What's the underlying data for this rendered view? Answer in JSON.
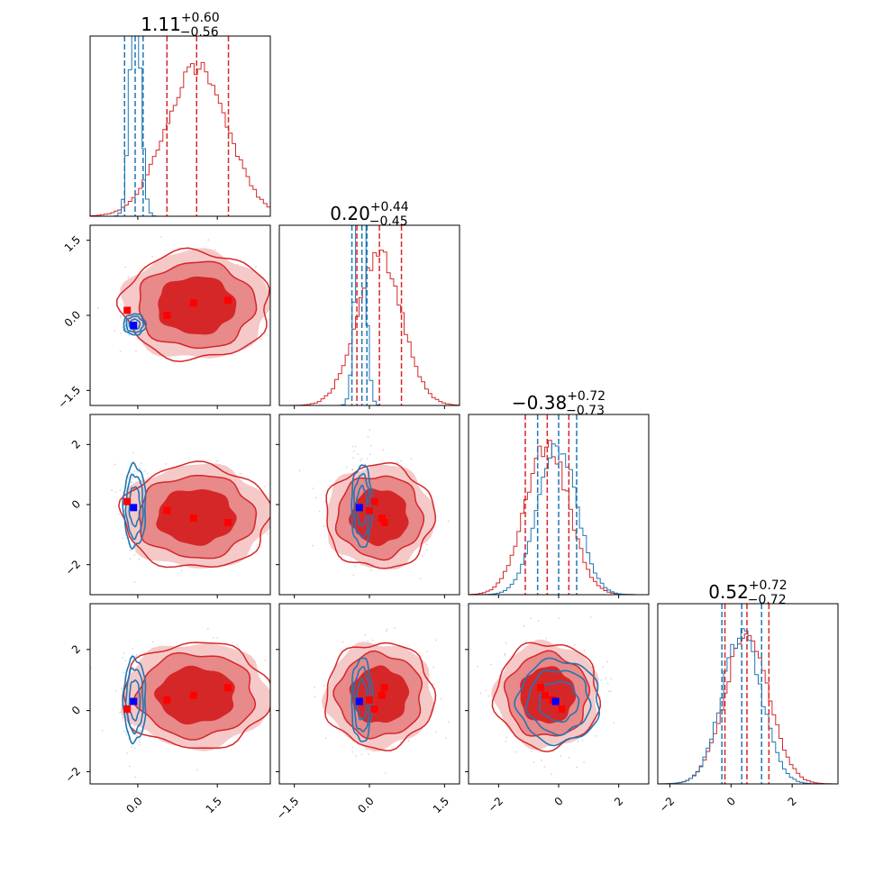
{
  "chart_data": {
    "type": "corner",
    "parameters": 4,
    "colors": {
      "red": "#d62728",
      "red_mid": "#e8898a",
      "red_light": "#f6c9c9",
      "blue": "#1f77b4",
      "blue_marker": "#0000ff",
      "red_marker": "#ff0000"
    },
    "series": [
      {
        "color": "red"
      },
      {
        "color": "blue"
      }
    ],
    "titles": [
      {
        "value": "1.11",
        "plus": "+0.60",
        "minus": "−0.56"
      },
      {
        "value": "0.20",
        "plus": "+0.44",
        "minus": "−0.45"
      },
      {
        "value": "−0.38",
        "plus": "+0.72",
        "minus": "−0.73"
      },
      {
        "value": "0.52",
        "plus": "+0.72",
        "minus": "−0.72"
      }
    ],
    "ranges": [
      [
        -0.9,
        2.5
      ],
      [
        -1.8,
        1.8
      ],
      [
        -3.0,
        3.0
      ],
      [
        -2.4,
        3.5
      ]
    ],
    "ticks": [
      {
        "values": [
          0.0,
          1.5
        ],
        "labels": [
          "0.0",
          "1.5"
        ]
      },
      {
        "values": [
          -1.5,
          0.0,
          1.5
        ],
        "labels": [
          "−1.5",
          "0.0",
          "1.5"
        ]
      },
      {
        "values": [
          -2,
          0,
          2
        ],
        "labels": [
          "−2",
          "0",
          "2"
        ]
      },
      {
        "values": [
          -2,
          0,
          2
        ],
        "labels": [
          "−2",
          "0",
          "2"
        ]
      }
    ],
    "quantiles": {
      "red": [
        [
          0.55,
          1.11,
          1.71
        ],
        [
          -0.25,
          0.2,
          0.64
        ],
        [
          -1.11,
          -0.38,
          0.34
        ],
        [
          -0.2,
          0.52,
          1.24
        ]
      ],
      "blue": [
        [
          -0.25,
          -0.05,
          0.1
        ],
        [
          -0.35,
          -0.15,
          -0.05
        ],
        [
          -0.7,
          0.0,
          0.6
        ],
        [
          -0.3,
          0.35,
          1.0
        ]
      ]
    },
    "markers": {
      "red": [
        [
          -0.2,
          0.1,
          0.1,
          0.05
        ],
        [
          0.55,
          0.0,
          -0.2,
          0.35
        ],
        [
          1.05,
          0.25,
          -0.45,
          0.5
        ],
        [
          1.7,
          0.3,
          -0.6,
          0.75
        ]
      ],
      "blue": [
        [
          -0.08,
          -0.2,
          -0.1,
          0.3
        ]
      ]
    },
    "contours": {
      "red": [
        {
          "center": [
            1.1,
            0.2
          ],
          "sd": [
            0.58,
            0.45
          ]
        },
        {
          "center": [
            1.1,
            -0.4
          ],
          "sd": [
            0.58,
            0.72
          ]
        },
        {
          "center": [
            0.2,
            -0.4
          ],
          "sd": [
            0.45,
            0.72
          ]
        },
        {
          "center": [
            1.1,
            0.5
          ],
          "sd": [
            0.58,
            0.72
          ]
        },
        {
          "center": [
            0.2,
            0.5
          ],
          "sd": [
            0.45,
            0.72
          ]
        },
        {
          "center": [
            -0.38,
            0.5
          ],
          "sd": [
            0.72,
            0.72
          ]
        }
      ],
      "blue": [
        {
          "center": [
            -0.06,
            -0.18
          ],
          "sd": [
            0.1,
            0.1
          ]
        },
        {
          "center": [
            -0.06,
            -0.05
          ],
          "sd": [
            0.1,
            0.65
          ]
        },
        {
          "center": [
            -0.15,
            -0.05
          ],
          "sd": [
            0.1,
            0.65
          ]
        },
        {
          "center": [
            -0.06,
            0.35
          ],
          "sd": [
            0.1,
            0.65
          ]
        },
        {
          "center": [
            -0.15,
            0.35
          ],
          "sd": [
            0.1,
            0.65
          ]
        },
        {
          "center": [
            0.0,
            0.3
          ],
          "sd": [
            0.65,
            0.65
          ]
        }
      ]
    },
    "histograms": {
      "red": [
        {
          "mean": 1.11,
          "sd": 0.58
        },
        {
          "mean": 0.2,
          "sd": 0.45
        },
        {
          "mean": -0.38,
          "sd": 0.72
        },
        {
          "mean": 0.52,
          "sd": 0.72
        }
      ],
      "blue": [
        {
          "mean": -0.05,
          "sd": 0.1,
          "overflow": true
        },
        {
          "mean": -0.18,
          "sd": 0.1,
          "overflow": true
        },
        {
          "mean": -0.05,
          "sd": 0.65
        },
        {
          "mean": 0.35,
          "sd": 0.65
        }
      ]
    },
    "grid": false,
    "legend": "none"
  }
}
